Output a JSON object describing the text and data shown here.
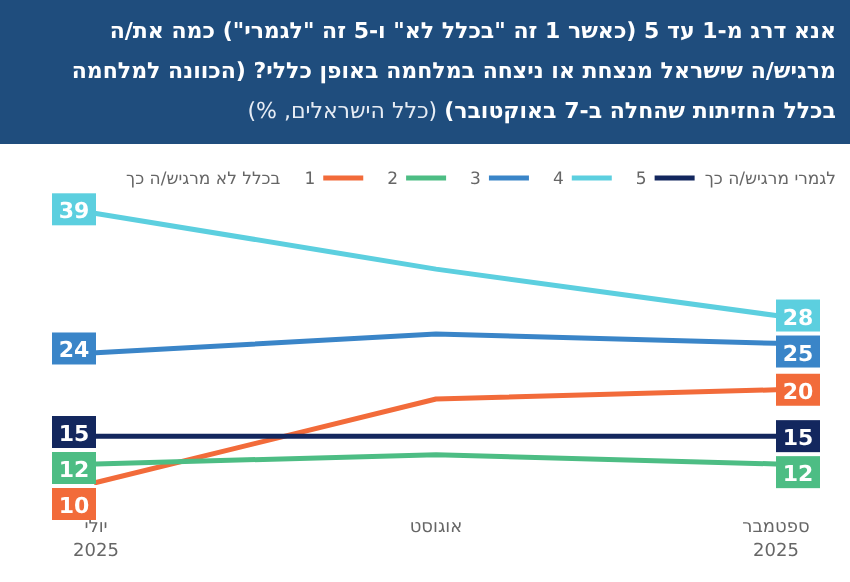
{
  "chart_data": {
    "type": "line",
    "title": "אנא דרג מ-1 עד 5 (כאשר 1 זה \"בכלל לא\" ו-5 זה \"לגמרי\") כמה את/ה מרגיש/ה שישראל מנצחת או ניצחה במלחמה באופן כללי? (הכוונה למלחמה בכלל החזיתות שהחלה ב-7 באוקטובר)",
    "subtitle": "(כלל הישראלים, %)",
    "categories": [
      "יולי\n2025",
      "אוגוסט",
      "ספטמבר\n2025"
    ],
    "series": [
      {
        "name": "1",
        "color": "#f26b3a",
        "values": [
          10,
          19,
          20
        ],
        "value_labels": [
          "10",
          null,
          "20"
        ]
      },
      {
        "name": "2",
        "color": "#4dbd84",
        "values": [
          12,
          13,
          12
        ],
        "value_labels": [
          "12",
          null,
          "12"
        ]
      },
      {
        "name": "3",
        "color": "#3a85c8",
        "values": [
          24,
          26,
          25
        ],
        "value_labels": [
          "24",
          null,
          "25"
        ]
      },
      {
        "name": "4",
        "color": "#5ccfdf",
        "values": [
          39,
          33,
          28
        ],
        "value_labels": [
          "39",
          null,
          "28"
        ]
      },
      {
        "name": "5",
        "color": "#13275e",
        "values": [
          15,
          15,
          15
        ],
        "value_labels": [
          "15",
          null,
          "15"
        ]
      }
    ],
    "annotations": [
      "בכלל לא מרגיש/ה כך",
      "לגמרי מרגיש/ה כך"
    ],
    "legend": "top",
    "marker": "none",
    "line_style": "solid"
  }
}
